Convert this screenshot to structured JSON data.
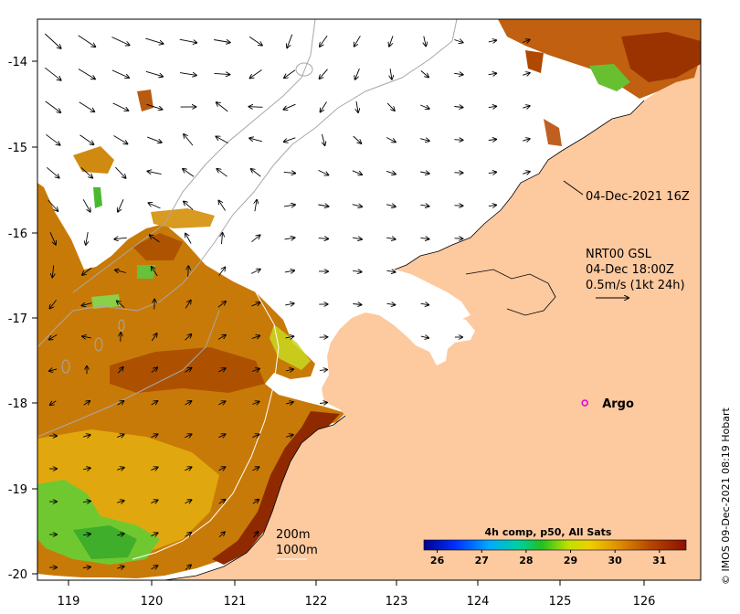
{
  "map": {
    "x_ticks": [
      "119",
      "120",
      "121",
      "122",
      "123",
      "124",
      "125",
      "126"
    ],
    "y_ticks": [
      "-14",
      "-15",
      "-16",
      "-17",
      "-18",
      "-19",
      "-20"
    ],
    "x_range": [
      118.6,
      126.75
    ],
    "y_range": [
      -20.05,
      -13.55
    ]
  },
  "annotations": {
    "pass_time": "04-Dec-2021 16Z",
    "current_source": "NRT00 GSL",
    "current_time": "04-Dec 18:00Z",
    "current_scale": "0.5m/s (1kt 24h)",
    "argo_label": "Argo",
    "contour_200": "200m",
    "contour_1000": "1000m"
  },
  "argo": {
    "lon": 125.28,
    "lat": -18.0
  },
  "colorbar": {
    "title": "4h comp, p50, All Sats",
    "ticks": [
      "26",
      "27",
      "28",
      "29",
      "30",
      "31"
    ],
    "range": [
      25.7,
      31.6
    ],
    "colors": [
      "#00008f",
      "#0040ff",
      "#00bfff",
      "#00d060",
      "#40d000",
      "#d8e000",
      "#f0c000",
      "#d08000",
      "#b04000",
      "#8b1a00"
    ]
  },
  "credit": "© IMOS 09-Dec-2021 08:19 Hobart",
  "colors": {
    "land": "#fdc99f",
    "sst_warm": "#c47000",
    "sst_hot": "#9a3300",
    "sst_mid": "#e6a400",
    "sst_green": "#58c020"
  }
}
